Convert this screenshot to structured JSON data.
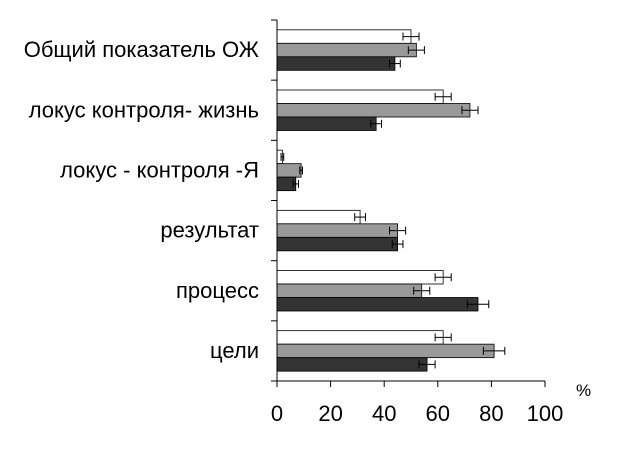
{
  "chart_data": {
    "type": "bar",
    "orientation": "horizontal",
    "categories": [
      "Общий показатель ОЖ",
      "локус контроля- жизнь",
      "локус - контроля -Я",
      "результат",
      "процесс",
      "цели"
    ],
    "series": [
      {
        "color": "#ffffff",
        "values": [
          50,
          62,
          2,
          31,
          62,
          62
        ],
        "errors": [
          3,
          3,
          0.5,
          2,
          3,
          3
        ]
      },
      {
        "color": "#999999",
        "values": [
          52,
          72,
          9,
          45,
          54,
          81
        ],
        "errors": [
          3,
          3,
          0.5,
          3,
          3,
          4
        ]
      },
      {
        "color": "#333333",
        "values": [
          44,
          37,
          7,
          45,
          75,
          56
        ],
        "errors": [
          2,
          2,
          1,
          2,
          4,
          3
        ]
      }
    ],
    "xlim": [
      0,
      100
    ],
    "xticks": [
      "0",
      "20",
      "40",
      "60",
      "80",
      "100"
    ],
    "x_unit_label": "%",
    "grid": false,
    "legend": "none"
  }
}
